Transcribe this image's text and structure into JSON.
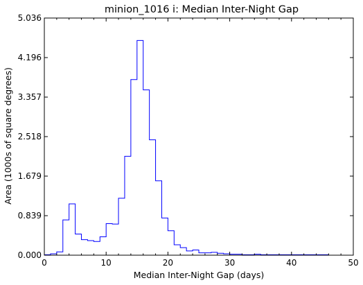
{
  "chart_data": {
    "type": "line",
    "step": "post",
    "title": "minion_1016  i: Median Inter-Night Gap",
    "xlabel": "Median Inter-Night Gap (days)",
    "ylabel": "Area (1000s of square degrees)",
    "xlim": [
      0,
      50
    ],
    "ylim": [
      0,
      5.036
    ],
    "x_ticks": [
      0,
      10,
      20,
      30,
      40,
      50
    ],
    "x_tick_labels": [
      "0",
      "10",
      "20",
      "30",
      "40",
      "50"
    ],
    "y_ticks": [
      0,
      0.839,
      1.679,
      2.518,
      3.357,
      4.196,
      5.036
    ],
    "y_tick_labels": [
      "0.000",
      "0.839",
      "1.679",
      "2.518",
      "3.357",
      "4.196",
      "5.036"
    ],
    "grid": false,
    "colors": {
      "line": "#0000ff",
      "axes": "#000000",
      "background": "#ffffff"
    },
    "series": [
      {
        "x": [
          0,
          1,
          2,
          3,
          4,
          5,
          6,
          7,
          8,
          9,
          10,
          11,
          12,
          13,
          14,
          15,
          16,
          17,
          18,
          19,
          20,
          21,
          22,
          23,
          24,
          25,
          26,
          27,
          28,
          29,
          30,
          31,
          32,
          33,
          34,
          35,
          36,
          37,
          38,
          39,
          40,
          41,
          42,
          43,
          44,
          45,
          46,
          47,
          48,
          49,
          50
        ],
        "y": [
          0.01,
          0.03,
          0.07,
          0.75,
          1.09,
          0.45,
          0.33,
          0.31,
          0.29,
          0.39,
          0.67,
          0.66,
          1.21,
          2.1,
          3.73,
          4.56,
          3.51,
          2.45,
          1.58,
          0.79,
          0.52,
          0.22,
          0.16,
          0.09,
          0.11,
          0.05,
          0.05,
          0.06,
          0.04,
          0.03,
          0.02,
          0.02,
          0.01,
          0.01,
          0.02,
          0.01,
          0.01,
          0.01,
          0.01,
          0.01,
          0.01,
          0.01,
          0.01,
          0.01,
          0.01,
          0.01,
          0.0,
          0.0,
          0.0,
          0.0,
          0.0
        ]
      }
    ]
  }
}
